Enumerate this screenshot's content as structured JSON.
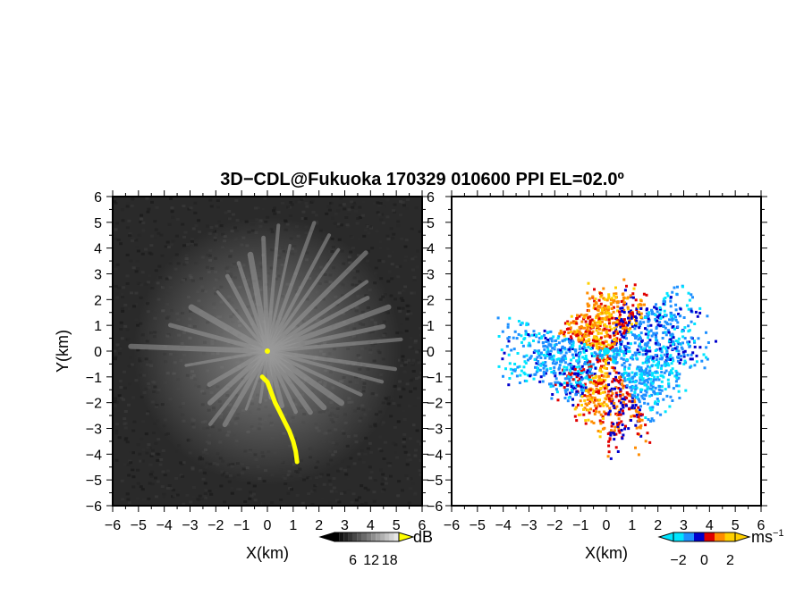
{
  "chart_data": {
    "type": "heatmap",
    "title": "3D−CDL@Fukuoka 170329 010600 PPI EL=02.0º",
    "panels": [
      {
        "id": "reflectivity",
        "xlabel": "X(km)",
        "ylabel": "Y(km)",
        "xlim": [
          -6,
          6
        ],
        "ylim": [
          -6,
          6
        ],
        "xticks": [
          "−6",
          "−5",
          "−4",
          "−3",
          "−2",
          "−1",
          "0",
          "1",
          "2",
          "3",
          "4",
          "5",
          "6"
        ],
        "yticks": [
          "6",
          "5",
          "4",
          "3",
          "2",
          "1",
          "0",
          "−1",
          "−2",
          "−3",
          "−4",
          "−5",
          "−6"
        ],
        "background_color": "#2a2a2a",
        "highlight_color": "#ffff00",
        "colorbar": {
          "unit": "dB",
          "ticks": [
            "6",
            "12",
            "18"
          ],
          "tick_values": [
            6,
            12,
            18
          ],
          "range": [
            0,
            21
          ]
        }
      },
      {
        "id": "doppler-velocity",
        "xlabel": "X(km)",
        "ylabel": "",
        "xlim": [
          -6,
          6
        ],
        "ylim": [
          -6,
          6
        ],
        "xticks": [
          "−6",
          "−5",
          "−4",
          "−3",
          "−2",
          "−1",
          "0",
          "1",
          "2",
          "3",
          "4",
          "5",
          "6"
        ],
        "yticks": [
          "6",
          "5",
          "4",
          "3",
          "2",
          "1",
          "0",
          "−1",
          "−2",
          "−3",
          "−4",
          "−5",
          "−6"
        ],
        "colorbar": {
          "unit": "ms",
          "unit_exponent": "−1",
          "ticks": [
            "−2",
            "0",
            "2"
          ],
          "tick_values": [
            -2,
            0,
            2
          ],
          "range": [
            -3,
            3
          ],
          "colors": [
            "#00e5ff",
            "#1e90ff",
            "#0000cd",
            "#e00000",
            "#ff8c00",
            "#ffd000"
          ]
        }
      }
    ]
  }
}
